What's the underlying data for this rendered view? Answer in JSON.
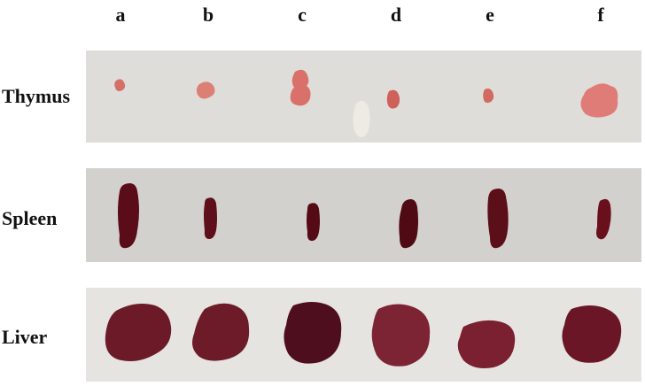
{
  "columns": [
    "a",
    "b",
    "c",
    "d",
    "e",
    "f"
  ],
  "rows": [
    {
      "label": "Thymus",
      "organ": "thymus-icon"
    },
    {
      "label": "Spleen",
      "organ": "spleen-icon"
    },
    {
      "label": "Liver",
      "organ": "liver-icon"
    }
  ],
  "colors": {
    "paper": "#dedcd8",
    "thymus": "#d9706a",
    "spleen": "#5a0d16",
    "liver": "#6a1826"
  }
}
